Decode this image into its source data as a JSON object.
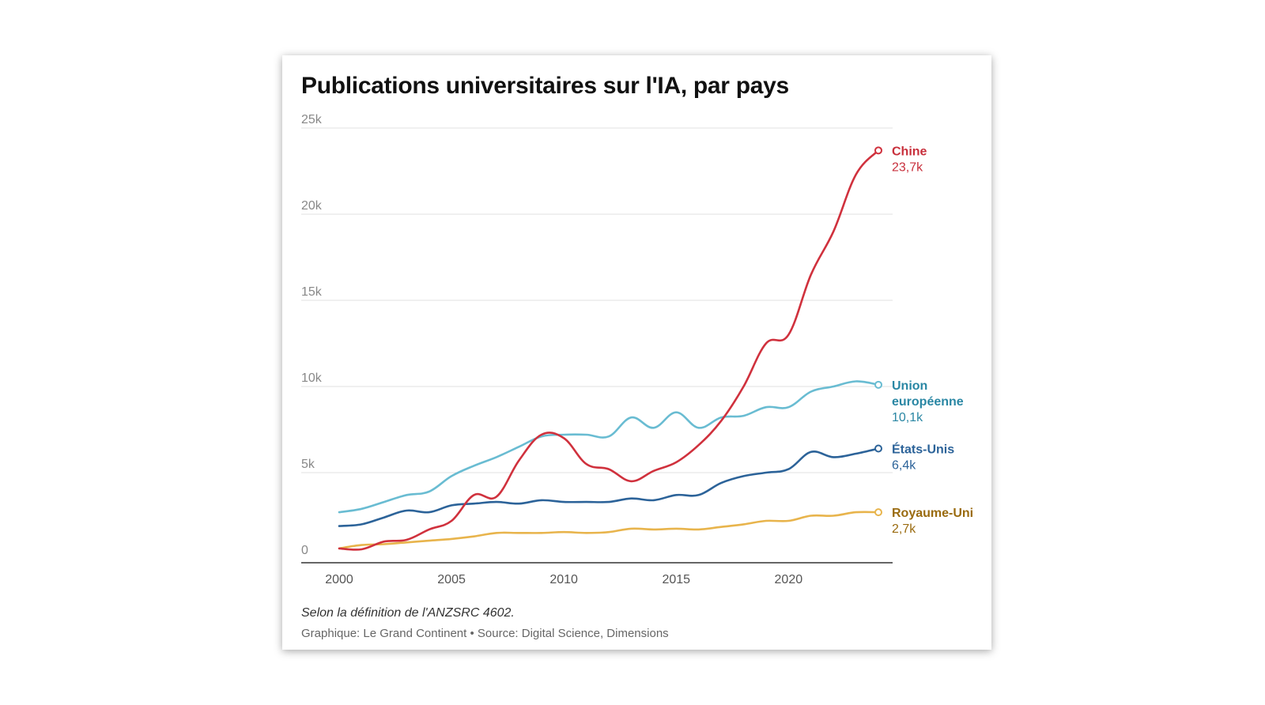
{
  "chart_data": {
    "type": "line",
    "title": "Publications universitaires sur l'IA, par pays",
    "note": "Selon la définition de l'ANZSRC 4602.",
    "credits": "Graphique: Le Grand Continent • Source: Digital Science, Dimensions",
    "xlim": [
      2000,
      2024
    ],
    "ylim": [
      0,
      25000
    ],
    "x_ticks": [
      2000,
      2005,
      2010,
      2015,
      2020
    ],
    "y_ticks": [
      {
        "value": 0,
        "label": "0"
      },
      {
        "value": 5000,
        "label": "5k"
      },
      {
        "value": 10000,
        "label": "10k"
      },
      {
        "value": 15000,
        "label": "15k"
      },
      {
        "value": 20000,
        "label": "20k"
      },
      {
        "value": 25000,
        "label": "25k"
      }
    ],
    "grid": true,
    "x": [
      2000,
      2001,
      2002,
      2003,
      2004,
      2005,
      2006,
      2007,
      2008,
      2009,
      2010,
      2011,
      2012,
      2013,
      2014,
      2015,
      2016,
      2017,
      2018,
      2019,
      2020,
      2021,
      2022,
      2023,
      2024
    ],
    "series": [
      {
        "name": "Chine",
        "end_label": "23,7k",
        "color": "#d0313d",
        "label_color": "#c8303c",
        "values": [
          600,
          550,
          1000,
          1100,
          1700,
          2200,
          3700,
          3600,
          5700,
          7200,
          7000,
          5500,
          5200,
          4500,
          5100,
          5600,
          6600,
          8000,
          10000,
          12500,
          13000,
          16500,
          19000,
          22300,
          23700
        ]
      },
      {
        "name": "Union européenne",
        "name_lines": [
          "Union",
          "européenne"
        ],
        "end_label": "10,1k",
        "color": "#69bcd2",
        "label_color": "#2a87a4",
        "values": [
          2700,
          2900,
          3300,
          3700,
          3900,
          4800,
          5400,
          5900,
          6500,
          7100,
          7200,
          7200,
          7100,
          8200,
          7600,
          8500,
          7600,
          8200,
          8300,
          8800,
          8800,
          9700,
          10000,
          10300,
          10100
        ]
      },
      {
        "name": "États-Unis",
        "end_label": "6,4k",
        "color": "#2c6399",
        "label_color": "#2c6399",
        "values": [
          1900,
          2000,
          2400,
          2800,
          2700,
          3100,
          3200,
          3300,
          3200,
          3400,
          3300,
          3300,
          3300,
          3500,
          3400,
          3700,
          3700,
          4400,
          4800,
          5000,
          5200,
          6200,
          5900,
          6100,
          6400
        ]
      },
      {
        "name": "Royaume-Uni",
        "end_label": "2,7k",
        "color": "#e8b44c",
        "label_color": "#9a6b10",
        "values": [
          600,
          800,
          850,
          950,
          1050,
          1150,
          1300,
          1500,
          1500,
          1500,
          1550,
          1500,
          1550,
          1750,
          1700,
          1750,
          1700,
          1850,
          2000,
          2200,
          2200,
          2500,
          2500,
          2700,
          2700
        ]
      }
    ]
  }
}
